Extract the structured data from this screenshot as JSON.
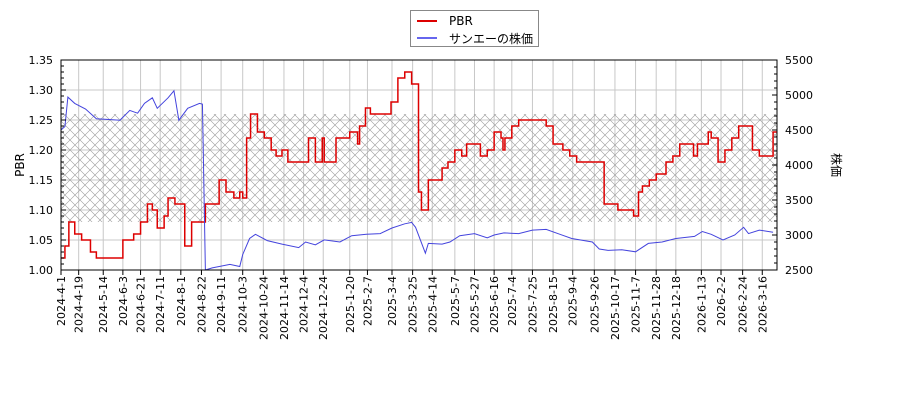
{
  "chart_data": {
    "type": "line",
    "title": "",
    "legend": {
      "position": "top-center",
      "entries": [
        {
          "label": "PBR",
          "color": "#dd0000"
        },
        {
          "label": "サンエーの株価",
          "color": "#4444dd"
        }
      ]
    },
    "xlabel": "",
    "ylabel_left": "PBR",
    "ylabel_right": "株価",
    "ylim_left": [
      1.0,
      1.35
    ],
    "ylim_right": [
      2500,
      5500
    ],
    "yticks_left": [
      "1.00",
      "1.05",
      "1.10",
      "1.15",
      "1.20",
      "1.25",
      "1.30",
      "1.35"
    ],
    "yticks_right": [
      "2500",
      "3000",
      "3500",
      "4000",
      "4500",
      "5000",
      "5500"
    ],
    "grid": true,
    "hatched_band": {
      "pbr_low": 1.08,
      "pbr_high": 1.26
    },
    "x_ticks": [
      "2024-4-1",
      "2024-4-19",
      "2024-5-14",
      "2024-6-3",
      "2024-6-21",
      "2024-7-11",
      "2024-8-1",
      "2024-8-22",
      "2024-9-11",
      "2024-10-3",
      "2024-10-24",
      "2024-11-14",
      "2024-12-4",
      "2024-12-24",
      "2025-1-20",
      "2025-2-7",
      "2025-3-4",
      "2025-3-25",
      "2025-4-14",
      "2025-5-7",
      "2025-5-27",
      "2025-6-16",
      "2025-7-4",
      "2025-7-25",
      "2025-8-15",
      "2025-9-4",
      "2025-9-26",
      "2025-10-17",
      "2025-11-7",
      "2025-11-28",
      "2025-12-18",
      "2026-1-13",
      "2026-2-2",
      "2026-2-24",
      "2026-3-16"
    ],
    "series": [
      {
        "name": "PBR",
        "axis": "left",
        "color": "#dd0000",
        "step": true,
        "points": [
          [
            "2024-4-1",
            1.02
          ],
          [
            "2024-4-5",
            1.04
          ],
          [
            "2024-4-9",
            1.08
          ],
          [
            "2024-4-15",
            1.06
          ],
          [
            "2024-4-22",
            1.05
          ],
          [
            "2024-5-1",
            1.03
          ],
          [
            "2024-5-7",
            1.02
          ],
          [
            "2024-6-3",
            1.05
          ],
          [
            "2024-6-14",
            1.06
          ],
          [
            "2024-6-21",
            1.08
          ],
          [
            "2024-6-28",
            1.11
          ],
          [
            "2024-7-3",
            1.1
          ],
          [
            "2024-7-8",
            1.07
          ],
          [
            "2024-7-15",
            1.09
          ],
          [
            "2024-7-19",
            1.12
          ],
          [
            "2024-7-26",
            1.11
          ],
          [
            "2024-8-5",
            1.04
          ],
          [
            "2024-8-12",
            1.08
          ],
          [
            "2024-8-26",
            1.11
          ],
          [
            "2024-9-9",
            1.15
          ],
          [
            "2024-9-16",
            1.13
          ],
          [
            "2024-9-24",
            1.12
          ],
          [
            "2024-9-30",
            1.13
          ],
          [
            "2024-10-3",
            1.12
          ],
          [
            "2024-10-7",
            1.22
          ],
          [
            "2024-10-11",
            1.26
          ],
          [
            "2024-10-18",
            1.23
          ],
          [
            "2024-10-25",
            1.22
          ],
          [
            "2024-11-1",
            1.2
          ],
          [
            "2024-11-6",
            1.19
          ],
          [
            "2024-11-12",
            1.2
          ],
          [
            "2024-11-18",
            1.18
          ],
          [
            "2024-12-9",
            1.22
          ],
          [
            "2024-12-16",
            1.18
          ],
          [
            "2024-12-23",
            1.22
          ],
          [
            "2024-12-25",
            1.18
          ],
          [
            "2025-1-6",
            1.22
          ],
          [
            "2025-1-20",
            1.23
          ],
          [
            "2025-1-28",
            1.21
          ],
          [
            "2025-1-30",
            1.24
          ],
          [
            "2025-2-5",
            1.27
          ],
          [
            "2025-2-10",
            1.26
          ],
          [
            "2025-3-3",
            1.28
          ],
          [
            "2025-3-10",
            1.32
          ],
          [
            "2025-3-17",
            1.33
          ],
          [
            "2025-3-24",
            1.31
          ],
          [
            "2025-3-31",
            1.13
          ],
          [
            "2025-4-3",
            1.1
          ],
          [
            "2025-4-10",
            1.15
          ],
          [
            "2025-4-24",
            1.17
          ],
          [
            "2025-4-30",
            1.18
          ],
          [
            "2025-5-7",
            1.2
          ],
          [
            "2025-5-14",
            1.19
          ],
          [
            "2025-5-19",
            1.21
          ],
          [
            "2025-6-2",
            1.19
          ],
          [
            "2025-6-9",
            1.2
          ],
          [
            "2025-6-16",
            1.23
          ],
          [
            "2025-6-23",
            1.22
          ],
          [
            "2025-6-25",
            1.2
          ],
          [
            "2025-6-27",
            1.22
          ],
          [
            "2025-7-4",
            1.24
          ],
          [
            "2025-7-11",
            1.25
          ],
          [
            "2025-8-8",
            1.24
          ],
          [
            "2025-8-15",
            1.21
          ],
          [
            "2025-8-25",
            1.2
          ],
          [
            "2025-9-1",
            1.19
          ],
          [
            "2025-9-8",
            1.18
          ],
          [
            "2025-10-6",
            1.11
          ],
          [
            "2025-10-20",
            1.1
          ],
          [
            "2025-11-5",
            1.09
          ],
          [
            "2025-11-10",
            1.13
          ],
          [
            "2025-11-14",
            1.14
          ],
          [
            "2025-11-21",
            1.15
          ],
          [
            "2025-11-28",
            1.16
          ],
          [
            "2025-12-8",
            1.18
          ],
          [
            "2025-12-15",
            1.19
          ],
          [
            "2025-12-22",
            1.21
          ],
          [
            "2026-1-5",
            1.19
          ],
          [
            "2026-1-9",
            1.21
          ],
          [
            "2026-1-20",
            1.23
          ],
          [
            "2026-1-23",
            1.22
          ],
          [
            "2026-1-30",
            1.18
          ],
          [
            "2026-2-6",
            1.2
          ],
          [
            "2026-2-13",
            1.22
          ],
          [
            "2026-2-20",
            1.24
          ],
          [
            "2026-3-6",
            1.2
          ],
          [
            "2026-3-13",
            1.19
          ],
          [
            "2026-3-27",
            1.23
          ]
        ]
      },
      {
        "name": "サンエーの株価",
        "axis": "right",
        "color": "#4444dd",
        "points": [
          [
            "2024-4-1",
            4500
          ],
          [
            "2024-4-5",
            4550
          ],
          [
            "2024-4-8",
            4970
          ],
          [
            "2024-4-15",
            4880
          ],
          [
            "2024-4-26",
            4800
          ],
          [
            "2024-5-7",
            4660
          ],
          [
            "2024-5-20",
            4650
          ],
          [
            "2024-5-31",
            4640
          ],
          [
            "2024-6-10",
            4780
          ],
          [
            "2024-6-18",
            4740
          ],
          [
            "2024-6-25",
            4880
          ],
          [
            "2024-7-3",
            4960
          ],
          [
            "2024-7-8",
            4810
          ],
          [
            "2024-7-19",
            4960
          ],
          [
            "2024-7-25",
            5060
          ],
          [
            "2024-7-30",
            4640
          ],
          [
            "2024-8-8",
            4810
          ],
          [
            "2024-8-20",
            4880
          ],
          [
            "2024-8-23",
            4870
          ],
          [
            "2024-8-26",
            2500
          ],
          [
            "2024-9-2",
            2530
          ],
          [
            "2024-9-20",
            2580
          ],
          [
            "2024-9-30",
            2550
          ],
          [
            "2024-10-3",
            2720
          ],
          [
            "2024-10-10",
            2950
          ],
          [
            "2024-10-16",
            3010
          ],
          [
            "2024-10-28",
            2920
          ],
          [
            "2024-11-12",
            2870
          ],
          [
            "2024-11-29",
            2820
          ],
          [
            "2024-12-6",
            2900
          ],
          [
            "2024-12-16",
            2860
          ],
          [
            "2024-12-25",
            2930
          ],
          [
            "2025-1-10",
            2900
          ],
          [
            "2025-1-22",
            2990
          ],
          [
            "2025-2-6",
            3010
          ],
          [
            "2025-2-20",
            3020
          ],
          [
            "2025-3-4",
            3100
          ],
          [
            "2025-3-17",
            3160
          ],
          [
            "2025-3-24",
            3180
          ],
          [
            "2025-3-28",
            3110
          ],
          [
            "2025-4-7",
            2740
          ],
          [
            "2025-4-10",
            2880
          ],
          [
            "2025-4-24",
            2870
          ],
          [
            "2025-5-2",
            2900
          ],
          [
            "2025-5-12",
            2990
          ],
          [
            "2025-5-27",
            3020
          ],
          [
            "2025-6-9",
            2960
          ],
          [
            "2025-6-16",
            3000
          ],
          [
            "2025-6-26",
            3030
          ],
          [
            "2025-7-11",
            3020
          ],
          [
            "2025-7-25",
            3070
          ],
          [
            "2025-8-8",
            3080
          ],
          [
            "2025-8-22",
            3010
          ],
          [
            "2025-9-3",
            2950
          ],
          [
            "2025-9-24",
            2900
          ],
          [
            "2025-10-1",
            2800
          ],
          [
            "2025-10-10",
            2780
          ],
          [
            "2025-10-24",
            2790
          ],
          [
            "2025-11-7",
            2760
          ],
          [
            "2025-11-20",
            2880
          ],
          [
            "2025-12-4",
            2900
          ],
          [
            "2025-12-18",
            2950
          ],
          [
            "2026-1-6",
            2980
          ],
          [
            "2026-1-14",
            3050
          ],
          [
            "2026-1-23",
            3010
          ],
          [
            "2026-2-4",
            2930
          ],
          [
            "2026-2-16",
            3000
          ],
          [
            "2026-2-25",
            3110
          ],
          [
            "2026-3-2",
            3020
          ],
          [
            "2026-3-13",
            3070
          ],
          [
            "2026-3-27",
            3040
          ]
        ]
      }
    ]
  }
}
